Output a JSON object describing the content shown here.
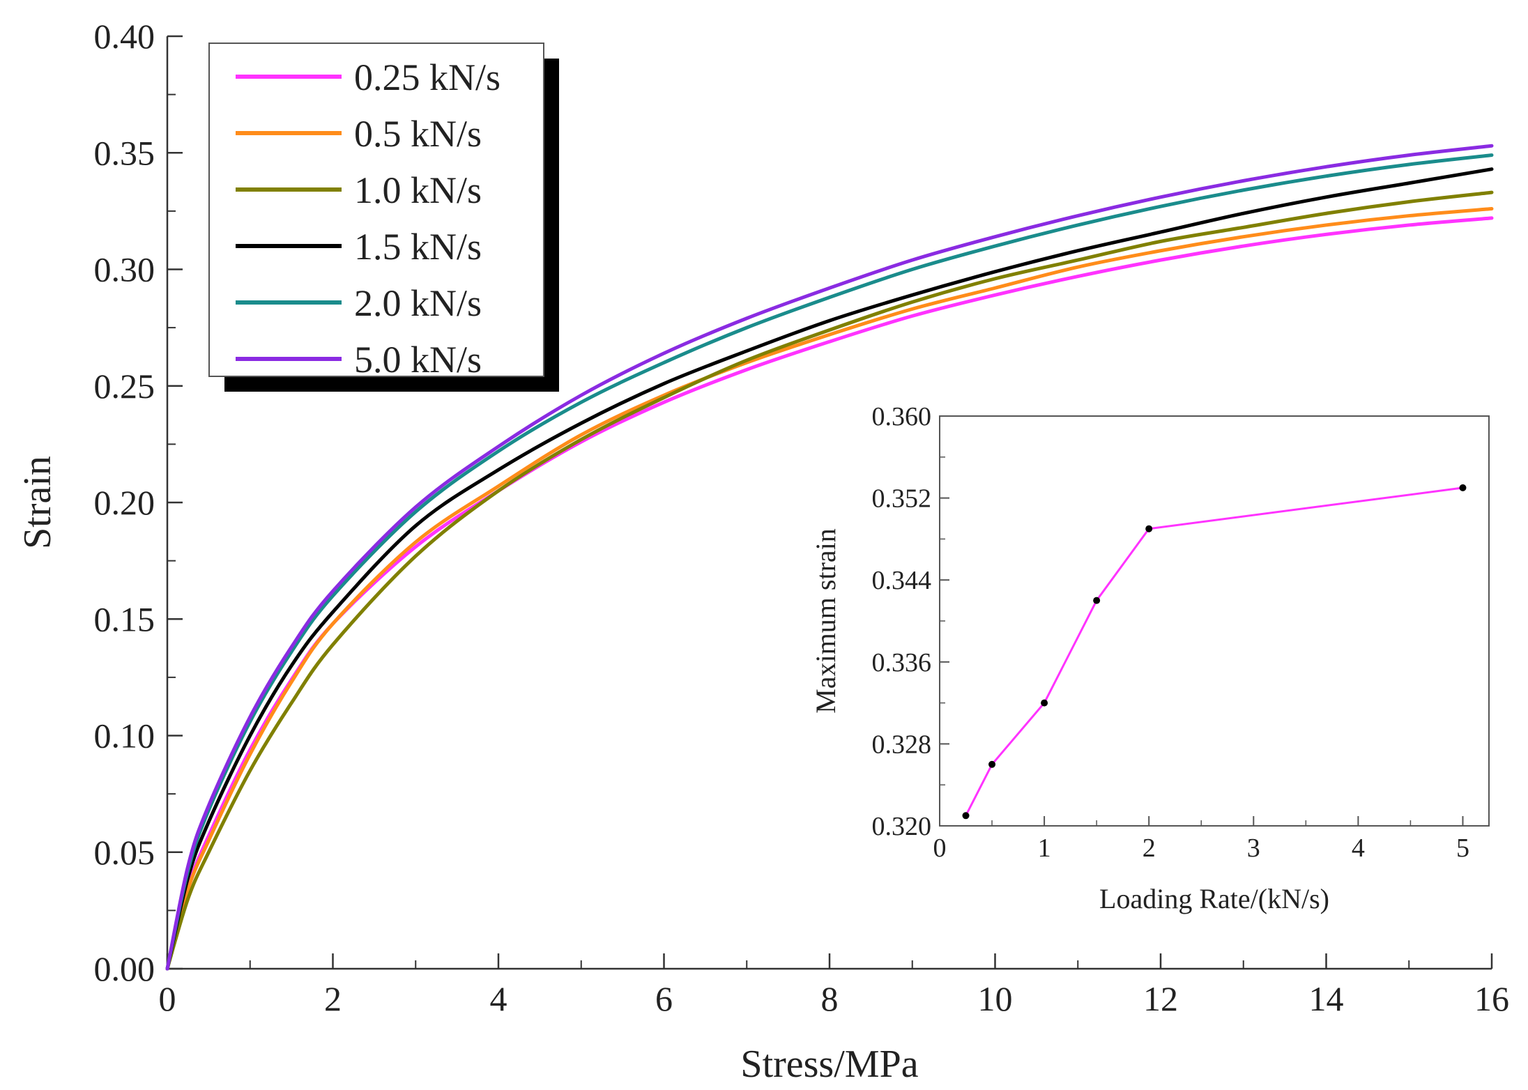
{
  "chart_data": [
    {
      "type": "line",
      "xlabel": "Stress/MPa",
      "ylabel": "Strain",
      "xlim": [
        0,
        16
      ],
      "ylim": [
        0,
        0.4
      ],
      "xticks": [
        0,
        2,
        4,
        6,
        8,
        10,
        12,
        14,
        16
      ],
      "yticks": [
        0.0,
        0.05,
        0.1,
        0.15,
        0.2,
        0.25,
        0.3,
        0.35,
        0.4
      ],
      "xtick_labels": [
        "0",
        "2",
        "4",
        "6",
        "8",
        "10",
        "12",
        "14",
        "16"
      ],
      "ytick_labels": [
        "0.00",
        "0.05",
        "0.10",
        "0.15",
        "0.20",
        "0.25",
        "0.30",
        "0.35",
        "0.40"
      ],
      "legend_position": "top-left",
      "grid": false,
      "x": [
        0,
        0.25,
        0.5,
        1,
        1.5,
        2,
        3,
        4,
        5,
        6,
        7,
        8,
        9,
        10,
        11,
        12,
        13,
        14,
        15,
        16
      ],
      "series": [
        {
          "name": "0.25 kN/s",
          "color": "#ff33ff",
          "values": [
            0,
            0.035,
            0.057,
            0.094,
            0.124,
            0.148,
            0.181,
            0.205,
            0.226,
            0.243,
            0.257,
            0.269,
            0.28,
            0.289,
            0.297,
            0.304,
            0.31,
            0.315,
            0.319,
            0.322
          ]
        },
        {
          "name": "0.5 kN/s",
          "color": "#ff8c1a",
          "values": [
            0,
            0.034,
            0.055,
            0.092,
            0.123,
            0.148,
            0.183,
            0.207,
            0.229,
            0.246,
            0.26,
            0.272,
            0.283,
            0.292,
            0.301,
            0.308,
            0.314,
            0.319,
            0.323,
            0.326
          ]
        },
        {
          "name": "1.0 kN/s",
          "color": "#808000",
          "values": [
            0,
            0.03,
            0.05,
            0.085,
            0.114,
            0.139,
            0.177,
            0.205,
            0.227,
            0.245,
            0.261,
            0.274,
            0.286,
            0.296,
            0.304,
            0.312,
            0.318,
            0.324,
            0.329,
            0.333
          ]
        },
        {
          "name": "1.5 kN/s",
          "color": "#000000",
          "values": [
            0,
            0.039,
            0.063,
            0.1,
            0.13,
            0.153,
            0.19,
            0.214,
            0.234,
            0.251,
            0.265,
            0.278,
            0.289,
            0.299,
            0.308,
            0.316,
            0.324,
            0.331,
            0.337,
            0.343
          ]
        },
        {
          "name": "2.0 kN/s",
          "color": "#1a8c8c",
          "values": [
            0,
            0.042,
            0.068,
            0.106,
            0.136,
            0.16,
            0.196,
            0.222,
            0.243,
            0.26,
            0.275,
            0.288,
            0.3,
            0.31,
            0.319,
            0.327,
            0.334,
            0.34,
            0.345,
            0.349
          ]
        },
        {
          "name": "5.0 kN/s",
          "color": "#8a2be2",
          "values": [
            0,
            0.044,
            0.07,
            0.108,
            0.138,
            0.162,
            0.198,
            0.224,
            0.246,
            0.264,
            0.279,
            0.292,
            0.304,
            0.314,
            0.323,
            0.331,
            0.338,
            0.344,
            0.349,
            0.353
          ]
        }
      ]
    },
    {
      "type": "line",
      "inset": true,
      "position": "bottom-right",
      "xlabel": "Loading Rate/(kN/s)",
      "ylabel": "Maximum strain",
      "xlim": [
        0,
        5.25
      ],
      "ylim": [
        0.32,
        0.36
      ],
      "xticks": [
        0,
        1,
        2,
        3,
        4,
        5
      ],
      "yticks": [
        0.32,
        0.328,
        0.336,
        0.344,
        0.352,
        0.36
      ],
      "xtick_labels": [
        "0",
        "1",
        "2",
        "3",
        "4",
        "5"
      ],
      "ytick_labels": [
        "0.320",
        "0.328",
        "0.336",
        "0.344",
        "0.352",
        "0.360"
      ],
      "grid": false,
      "series": [
        {
          "name": "Maximum strain",
          "color": "#ff33ff",
          "marker_color": "#000000",
          "x": [
            0.25,
            0.5,
            1.0,
            1.5,
            2.0,
            5.0
          ],
          "values": [
            0.321,
            0.326,
            0.332,
            0.342,
            0.349,
            0.353
          ]
        }
      ]
    }
  ]
}
